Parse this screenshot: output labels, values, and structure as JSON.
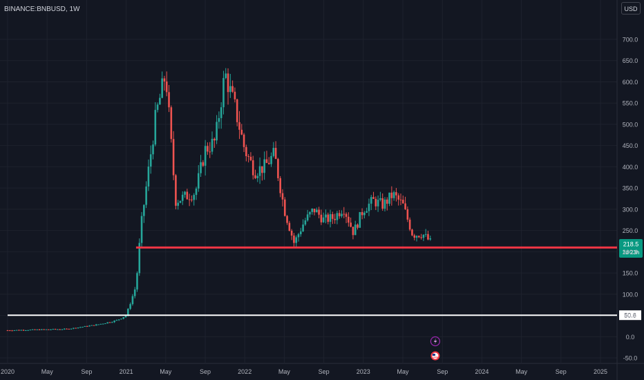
{
  "header": {
    "symbol": "BINANCE:BNBUSD, 1W",
    "currency": "USD"
  },
  "colors": {
    "background": "#131722",
    "up": "#26a69a",
    "down": "#ef5350",
    "support_line": "#f23645",
    "low_line": "#ffffff",
    "grid": "#1e222d",
    "text": "#b2b5be"
  },
  "chart_data": {
    "type": "candlestick",
    "interval": "1W",
    "ylim": [
      -60,
      740
    ],
    "y_ticks": [
      "-50.0",
      "0.0",
      "50.0",
      "100.0",
      "150.0",
      "200.0",
      "250.0",
      "300.0",
      "350.0",
      "400.0",
      "450.0",
      "500.0",
      "550.0",
      "600.0",
      "650.0",
      "700.0"
    ],
    "x_ticks": [
      "2020",
      "May",
      "Sep",
      "2021",
      "May",
      "Sep",
      "2022",
      "May",
      "Sep",
      "2023",
      "May",
      "Sep",
      "2024",
      "May",
      "Sep",
      "2025"
    ],
    "x_range": [
      "2020-01",
      "2025-02"
    ],
    "current_price": {
      "label": "218.5",
      "countdown": "1d 23h",
      "value": 218.5
    },
    "horizontal_lines": [
      {
        "value": 210,
        "color": "#f23645",
        "start": "2021-02"
      },
      {
        "value": 50.6,
        "label": "50.6",
        "color": "#ffffff",
        "start": "2020-01"
      }
    ],
    "events": [
      "lightning-event-icon",
      "us-flag-event-icon"
    ],
    "trend_anchors": [
      {
        "t": "2020-01",
        "v": 15
      },
      {
        "t": "2020-07",
        "v": 18
      },
      {
        "t": "2020-10",
        "v": 28
      },
      {
        "t": "2020-12",
        "v": 38
      },
      {
        "t": "2021-01",
        "v": 50
      },
      {
        "t": "2021-02",
        "v": 120
      },
      {
        "t": "2021-02.5",
        "v": 260
      },
      {
        "t": "2021-04",
        "v": 520
      },
      {
        "t": "2021-05",
        "v": 620
      },
      {
        "t": "2021-06",
        "v": 320
      },
      {
        "t": "2021-08",
        "v": 340
      },
      {
        "t": "2021-09",
        "v": 440
      },
      {
        "t": "2021-10",
        "v": 460
      },
      {
        "t": "2021-11",
        "v": 620
      },
      {
        "t": "2021-12",
        "v": 540
      },
      {
        "t": "2022-01",
        "v": 440
      },
      {
        "t": "2022-02",
        "v": 390
      },
      {
        "t": "2022-03",
        "v": 400
      },
      {
        "t": "2022-04",
        "v": 430
      },
      {
        "t": "2022-05",
        "v": 300
      },
      {
        "t": "2022-06",
        "v": 220
      },
      {
        "t": "2022-07",
        "v": 270
      },
      {
        "t": "2022-08",
        "v": 300
      },
      {
        "t": "2022-09",
        "v": 275
      },
      {
        "t": "2022-10",
        "v": 280
      },
      {
        "t": "2022-11",
        "v": 305
      },
      {
        "t": "2022-12",
        "v": 245
      },
      {
        "t": "2023-01",
        "v": 300
      },
      {
        "t": "2023-02",
        "v": 320
      },
      {
        "t": "2023-03",
        "v": 310
      },
      {
        "t": "2023-04",
        "v": 335
      },
      {
        "t": "2023-05",
        "v": 310
      },
      {
        "t": "2023-06",
        "v": 240
      },
      {
        "t": "2023-07",
        "v": 242
      },
      {
        "t": "2023-08",
        "v": 218
      }
    ]
  }
}
